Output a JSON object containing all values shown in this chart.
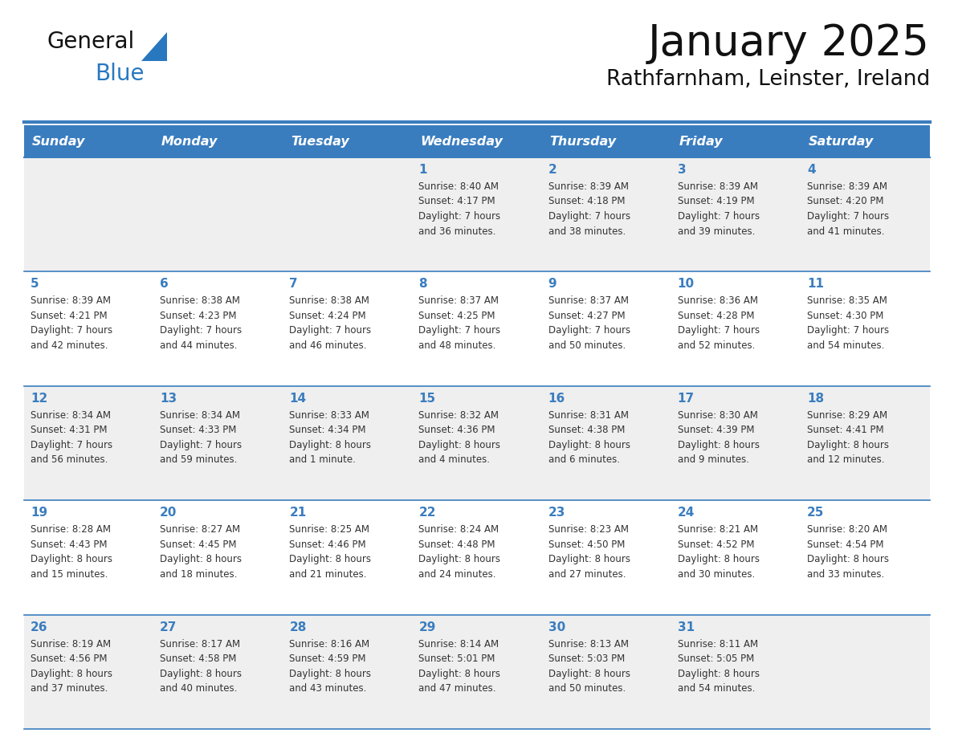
{
  "title": "January 2025",
  "subtitle": "Rathfarnham, Leinster, Ireland",
  "days_of_week": [
    "Sunday",
    "Monday",
    "Tuesday",
    "Wednesday",
    "Thursday",
    "Friday",
    "Saturday"
  ],
  "header_bg": "#3a7dbf",
  "header_text": "#FFFFFF",
  "cell_bg_even": "#efefef",
  "cell_bg_odd": "#FFFFFF",
  "row_line_color": "#3a7dbf",
  "day_num_color": "#3a7dbf",
  "text_color": "#333333",
  "logo_general_color": "#111111",
  "logo_blue_color": "#2878c0",
  "weeks": [
    {
      "days": [
        {
          "date": null,
          "info": null
        },
        {
          "date": null,
          "info": null
        },
        {
          "date": null,
          "info": null
        },
        {
          "date": "1",
          "info": "Sunrise: 8:40 AM\nSunset: 4:17 PM\nDaylight: 7 hours\nand 36 minutes."
        },
        {
          "date": "2",
          "info": "Sunrise: 8:39 AM\nSunset: 4:18 PM\nDaylight: 7 hours\nand 38 minutes."
        },
        {
          "date": "3",
          "info": "Sunrise: 8:39 AM\nSunset: 4:19 PM\nDaylight: 7 hours\nand 39 minutes."
        },
        {
          "date": "4",
          "info": "Sunrise: 8:39 AM\nSunset: 4:20 PM\nDaylight: 7 hours\nand 41 minutes."
        }
      ]
    },
    {
      "days": [
        {
          "date": "5",
          "info": "Sunrise: 8:39 AM\nSunset: 4:21 PM\nDaylight: 7 hours\nand 42 minutes."
        },
        {
          "date": "6",
          "info": "Sunrise: 8:38 AM\nSunset: 4:23 PM\nDaylight: 7 hours\nand 44 minutes."
        },
        {
          "date": "7",
          "info": "Sunrise: 8:38 AM\nSunset: 4:24 PM\nDaylight: 7 hours\nand 46 minutes."
        },
        {
          "date": "8",
          "info": "Sunrise: 8:37 AM\nSunset: 4:25 PM\nDaylight: 7 hours\nand 48 minutes."
        },
        {
          "date": "9",
          "info": "Sunrise: 8:37 AM\nSunset: 4:27 PM\nDaylight: 7 hours\nand 50 minutes."
        },
        {
          "date": "10",
          "info": "Sunrise: 8:36 AM\nSunset: 4:28 PM\nDaylight: 7 hours\nand 52 minutes."
        },
        {
          "date": "11",
          "info": "Sunrise: 8:35 AM\nSunset: 4:30 PM\nDaylight: 7 hours\nand 54 minutes."
        }
      ]
    },
    {
      "days": [
        {
          "date": "12",
          "info": "Sunrise: 8:34 AM\nSunset: 4:31 PM\nDaylight: 7 hours\nand 56 minutes."
        },
        {
          "date": "13",
          "info": "Sunrise: 8:34 AM\nSunset: 4:33 PM\nDaylight: 7 hours\nand 59 minutes."
        },
        {
          "date": "14",
          "info": "Sunrise: 8:33 AM\nSunset: 4:34 PM\nDaylight: 8 hours\nand 1 minute."
        },
        {
          "date": "15",
          "info": "Sunrise: 8:32 AM\nSunset: 4:36 PM\nDaylight: 8 hours\nand 4 minutes."
        },
        {
          "date": "16",
          "info": "Sunrise: 8:31 AM\nSunset: 4:38 PM\nDaylight: 8 hours\nand 6 minutes."
        },
        {
          "date": "17",
          "info": "Sunrise: 8:30 AM\nSunset: 4:39 PM\nDaylight: 8 hours\nand 9 minutes."
        },
        {
          "date": "18",
          "info": "Sunrise: 8:29 AM\nSunset: 4:41 PM\nDaylight: 8 hours\nand 12 minutes."
        }
      ]
    },
    {
      "days": [
        {
          "date": "19",
          "info": "Sunrise: 8:28 AM\nSunset: 4:43 PM\nDaylight: 8 hours\nand 15 minutes."
        },
        {
          "date": "20",
          "info": "Sunrise: 8:27 AM\nSunset: 4:45 PM\nDaylight: 8 hours\nand 18 minutes."
        },
        {
          "date": "21",
          "info": "Sunrise: 8:25 AM\nSunset: 4:46 PM\nDaylight: 8 hours\nand 21 minutes."
        },
        {
          "date": "22",
          "info": "Sunrise: 8:24 AM\nSunset: 4:48 PM\nDaylight: 8 hours\nand 24 minutes."
        },
        {
          "date": "23",
          "info": "Sunrise: 8:23 AM\nSunset: 4:50 PM\nDaylight: 8 hours\nand 27 minutes."
        },
        {
          "date": "24",
          "info": "Sunrise: 8:21 AM\nSunset: 4:52 PM\nDaylight: 8 hours\nand 30 minutes."
        },
        {
          "date": "25",
          "info": "Sunrise: 8:20 AM\nSunset: 4:54 PM\nDaylight: 8 hours\nand 33 minutes."
        }
      ]
    },
    {
      "days": [
        {
          "date": "26",
          "info": "Sunrise: 8:19 AM\nSunset: 4:56 PM\nDaylight: 8 hours\nand 37 minutes."
        },
        {
          "date": "27",
          "info": "Sunrise: 8:17 AM\nSunset: 4:58 PM\nDaylight: 8 hours\nand 40 minutes."
        },
        {
          "date": "28",
          "info": "Sunrise: 8:16 AM\nSunset: 4:59 PM\nDaylight: 8 hours\nand 43 minutes."
        },
        {
          "date": "29",
          "info": "Sunrise: 8:14 AM\nSunset: 5:01 PM\nDaylight: 8 hours\nand 47 minutes."
        },
        {
          "date": "30",
          "info": "Sunrise: 8:13 AM\nSunset: 5:03 PM\nDaylight: 8 hours\nand 50 minutes."
        },
        {
          "date": "31",
          "info": "Sunrise: 8:11 AM\nSunset: 5:05 PM\nDaylight: 8 hours\nand 54 minutes."
        },
        {
          "date": null,
          "info": null
        }
      ]
    }
  ]
}
